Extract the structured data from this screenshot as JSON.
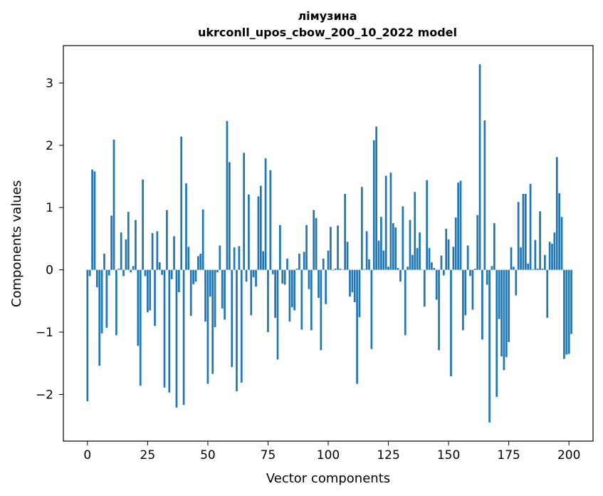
{
  "chart_data": {
    "type": "bar",
    "title_line1": "лімузина",
    "title_line2": "ukrconll_upos_cbow_200_10_2022 model",
    "xlabel": "Vector components",
    "ylabel": "Components values",
    "xlim": [
      -10,
      210
    ],
    "ylim": [
      -2.75,
      3.6
    ],
    "xticks": [
      0,
      25,
      50,
      75,
      100,
      125,
      150,
      175,
      200
    ],
    "yticks": [
      -2,
      -1,
      0,
      1,
      2,
      3
    ],
    "ytick_labels": [
      "−2",
      "−1",
      "0",
      "1",
      "2",
      "3"
    ],
    "bar_color": "#1f77b4",
    "grid": false,
    "legend": "none",
    "values": [
      -2.11,
      -0.1,
      1.61,
      1.58,
      -0.28,
      -1.54,
      -1.02,
      0.26,
      -0.93,
      -0.09,
      0.87,
      2.09,
      -1.05,
      0.02,
      0.6,
      -0.1,
      0.49,
      0.93,
      -0.04,
      0.06,
      0.8,
      -1.22,
      -1.86,
      1.45,
      -0.1,
      -0.68,
      -0.65,
      0.59,
      -0.9,
      0.62,
      0.12,
      -0.08,
      -1.89,
      0.96,
      -1.97,
      -0.15,
      0.54,
      -2.21,
      -0.36,
      2.14,
      -2.17,
      1.39,
      0.37,
      -0.74,
      -0.23,
      -0.19,
      0.22,
      0.26,
      0.97,
      -0.83,
      -1.83,
      -0.43,
      -1.67,
      -0.92,
      -0.04,
      0.39,
      -0.62,
      -0.8,
      2.39,
      1.73,
      -1.56,
      0.36,
      -1.95,
      0.38,
      -1.81,
      1.88,
      -0.19,
      1.21,
      -0.73,
      -0.12,
      -0.27,
      1.18,
      1.35,
      0.3,
      1.79,
      -1.0,
      1.6,
      -0.07,
      -0.77,
      -1.44,
      0.72,
      -0.22,
      -0.24,
      0.18,
      -0.83,
      -0.6,
      -0.65,
      0.02,
      0.26,
      -0.96,
      0.29,
      0.72,
      -0.31,
      -0.97,
      0.96,
      0.83,
      -0.45,
      -1.29,
      0.18,
      -0.55,
      0.31,
      0.69,
      -0.01,
      0.02,
      0.71,
      0.02,
      0.0,
      1.22,
      0.45,
      -0.43,
      -0.36,
      -0.52,
      -1.83,
      -0.76,
      1.33,
      0.01,
      0.62,
      0.17,
      -1.27,
      2.08,
      2.3,
      0.47,
      0.85,
      0.31,
      1.51,
      0.05,
      1.56,
      0.75,
      0.68,
      0.03,
      -0.19,
      1.02,
      -1.05,
      0.05,
      0.8,
      0.24,
      1.25,
      0.35,
      0.6,
      0.0,
      -0.59,
      1.44,
      0.35,
      0.12,
      0.03,
      -0.48,
      -1.29,
      0.23,
      -0.09,
      0.66,
      0.49,
      -1.71,
      0.37,
      0.84,
      1.4,
      1.43,
      -0.97,
      -0.73,
      0.39,
      -0.1,
      -0.64,
      0.02,
      0.88,
      3.3,
      -1.12,
      2.4,
      -0.24,
      -2.45,
      0.06,
      0.75,
      -2.04,
      -0.79,
      -1.39,
      -1.61,
      -1.4,
      -1.16,
      0.36,
      0.05,
      -0.41,
      1.09,
      0.36,
      1.22,
      1.22,
      0.1,
      1.38,
      0.01,
      0.48,
      0.02,
      0.94,
      0.02,
      0.24,
      -0.77,
      0.45,
      0.42,
      0.6,
      1.81,
      1.23,
      0.85,
      -1.43,
      -1.36,
      -1.35,
      -1.03
    ]
  }
}
